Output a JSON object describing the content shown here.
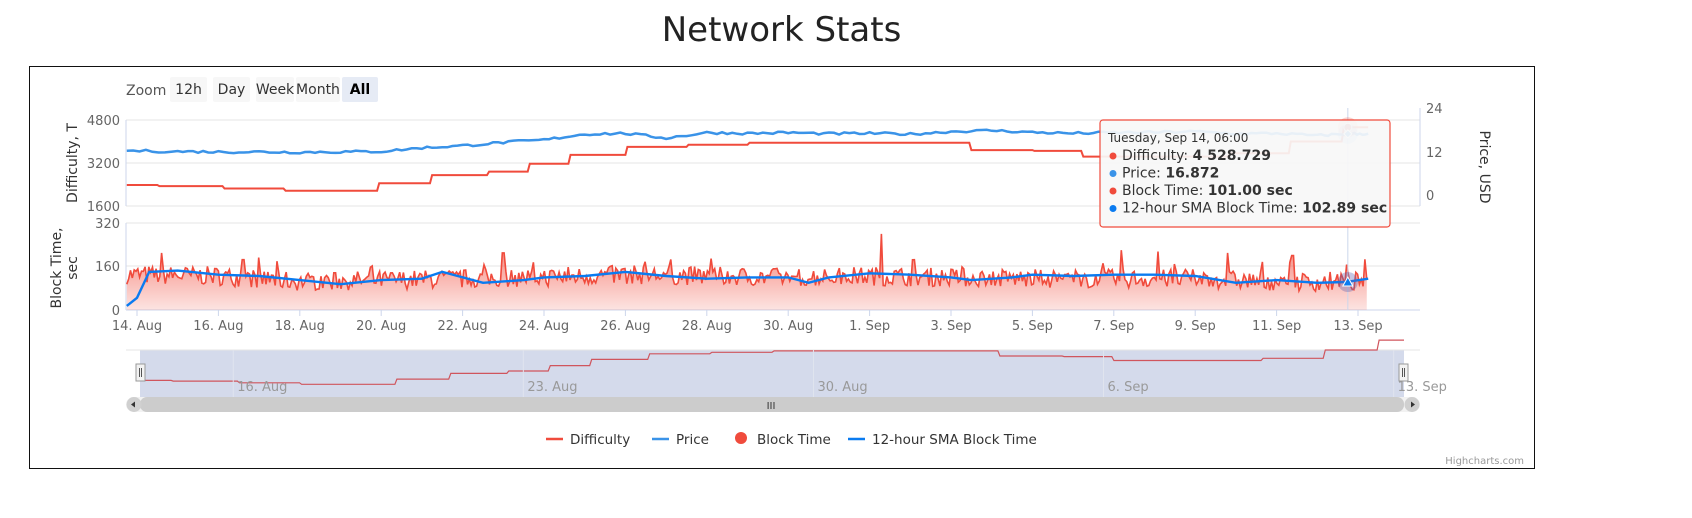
{
  "page": {
    "title": "Network Stats"
  },
  "range_selector": {
    "label": "Zoom",
    "buttons": [
      {
        "label": "12h",
        "active": false
      },
      {
        "label": "Day",
        "active": false
      },
      {
        "label": "Week",
        "active": false
      },
      {
        "label": "Month",
        "active": false
      },
      {
        "label": "All",
        "active": true
      }
    ]
  },
  "tooltip": {
    "header": "Tuesday, Sep 14, 06:00",
    "rows": [
      {
        "name": "Difficulty",
        "value": "4 528.729",
        "color": "#f04b3c"
      },
      {
        "name": "Price",
        "value": "16.872",
        "color": "#3a93e8"
      },
      {
        "name": "Block Time",
        "value": "101.00 sec",
        "color": "#f04b3c"
      },
      {
        "name": "12-hour SMA Block Time",
        "value": "102.89 sec",
        "color": "#0a7bf0"
      }
    ]
  },
  "legend": {
    "items": [
      {
        "name": "Difficulty",
        "symbol": "line",
        "color": "#f04b3c"
      },
      {
        "name": "Price",
        "symbol": "line",
        "color": "#3a93e8"
      },
      {
        "name": "Block Time",
        "symbol": "circle",
        "color": "#f04b3c"
      },
      {
        "name": "12-hour SMA Block Time",
        "symbol": "line",
        "color": "#0a7bf0"
      }
    ]
  },
  "credits": "Highcharts.com",
  "navigator": {
    "labels": [
      "16. Aug",
      "23. Aug",
      "30. Aug",
      "6. Sep",
      "13. Sep"
    ],
    "scrollbar_grip": "III"
  },
  "chart_data": {
    "type": "line",
    "title": "Network Stats",
    "x_range": [
      "13. Aug 18:00",
      "14. Sep 06:00"
    ],
    "x_ticks": [
      "14. Aug",
      "16. Aug",
      "18. Aug",
      "20. Aug",
      "22. Aug",
      "24. Aug",
      "26. Aug",
      "28. Aug",
      "30. Aug",
      "1. Sep",
      "3. Sep",
      "5. Sep",
      "7. Sep",
      "9. Sep",
      "11. Sep",
      "13. Sep"
    ],
    "panes": [
      {
        "name": "top",
        "y_axis_left": {
          "title": "Difficulty, T",
          "ticks": [
            "4800",
            "3200",
            "1600"
          ],
          "range": [
            1600,
            4800
          ]
        },
        "y_axis_right": {
          "title": "Price, USD",
          "ticks": [
            "24",
            "12",
            "0"
          ],
          "range": [
            0,
            24
          ]
        }
      },
      {
        "name": "bottom",
        "y_axis_left": {
          "title": "Block Time, sec",
          "title_lines": [
            "Block Time,",
            "sec"
          ],
          "ticks": [
            "320",
            "160",
            "0"
          ],
          "range": [
            0,
            320
          ]
        }
      }
    ],
    "x_day_offsets_note": "x values are days since 14 Aug 00:00",
    "series": [
      {
        "name": "Difficulty",
        "type": "step-line",
        "axis": "difficulty",
        "color": "#f04b3c",
        "points": [
          [
            -0.25,
            2380
          ],
          [
            0.5,
            2380
          ],
          [
            0.55,
            2340
          ],
          [
            2.1,
            2340
          ],
          [
            2.15,
            2250
          ],
          [
            3.6,
            2250
          ],
          [
            3.65,
            2170
          ],
          [
            5.9,
            2170
          ],
          [
            5.95,
            2450
          ],
          [
            7.2,
            2450
          ],
          [
            7.25,
            2750
          ],
          [
            8.6,
            2750
          ],
          [
            8.65,
            2880
          ],
          [
            9.6,
            2880
          ],
          [
            9.65,
            3170
          ],
          [
            10.6,
            3170
          ],
          [
            10.65,
            3500
          ],
          [
            12.0,
            3500
          ],
          [
            12.05,
            3800
          ],
          [
            13.5,
            3800
          ],
          [
            13.55,
            3880
          ],
          [
            15.0,
            3880
          ],
          [
            15.05,
            3950
          ],
          [
            19.0,
            3950
          ],
          [
            19.05,
            3950
          ],
          [
            20.45,
            3950
          ],
          [
            20.5,
            3680
          ],
          [
            22.0,
            3680
          ],
          [
            22.05,
            3650
          ],
          [
            23.2,
            3650
          ],
          [
            23.25,
            3440
          ],
          [
            26.8,
            3440
          ],
          [
            26.85,
            3560
          ],
          [
            28.3,
            3560
          ],
          [
            28.35,
            4000
          ],
          [
            29.6,
            4000
          ],
          [
            29.65,
            4528.729
          ],
          [
            30.25,
            4528.729
          ]
        ]
      },
      {
        "name": "Price",
        "type": "line",
        "axis": "price",
        "color": "#3a93e8",
        "points": [
          [
            -0.25,
            12.2
          ],
          [
            1,
            12.0
          ],
          [
            2,
            11.9
          ],
          [
            3,
            11.9
          ],
          [
            4,
            11.8
          ],
          [
            5,
            11.9
          ],
          [
            6,
            12.0
          ],
          [
            7,
            13.0
          ],
          [
            8,
            13.6
          ],
          [
            9,
            14.5
          ],
          [
            10,
            15.2
          ],
          [
            11,
            16.8
          ],
          [
            12,
            17.0
          ],
          [
            13,
            15.7
          ],
          [
            14,
            17.2
          ],
          [
            15,
            17.0
          ],
          [
            16,
            17.2
          ],
          [
            17,
            16.9
          ],
          [
            18,
            17.0
          ],
          [
            19,
            16.8
          ],
          [
            20,
            17.5
          ],
          [
            21,
            17.8
          ],
          [
            22,
            17.3
          ],
          [
            23,
            17.0
          ],
          [
            24,
            17.2
          ],
          [
            25,
            17.3
          ],
          [
            26,
            17.5
          ],
          [
            27,
            16.9
          ],
          [
            28,
            17.0
          ],
          [
            29,
            16.4
          ],
          [
            29.7,
            16.872
          ],
          [
            30.25,
            16.9
          ]
        ]
      },
      {
        "name": "Block Time",
        "type": "area",
        "axis": "blocktime",
        "color": "#f04b3c",
        "summary": "noisy series around 80-180 sec, spikes up to ~280 sec near 1. Sep",
        "mean_segments": [
          [
            -0.25,
            130
          ],
          [
            2,
            125
          ],
          [
            4,
            105
          ],
          [
            6,
            110
          ],
          [
            8,
            115
          ],
          [
            10,
            120
          ],
          [
            12,
            130
          ],
          [
            14,
            125
          ],
          [
            16,
            120
          ],
          [
            18,
            125
          ],
          [
            20,
            120
          ],
          [
            22,
            115
          ],
          [
            24,
            115
          ],
          [
            26,
            115
          ],
          [
            28,
            105
          ],
          [
            29.7,
            101
          ],
          [
            30.25,
            110
          ]
        ],
        "peaks": [
          [
            0.6,
            210
          ],
          [
            2.6,
            185
          ],
          [
            9.0,
            210
          ],
          [
            18.3,
            280
          ],
          [
            24.2,
            220
          ],
          [
            25.1,
            215
          ],
          [
            26.8,
            210
          ],
          [
            28.4,
            200
          ]
        ]
      },
      {
        "name": "12-hour SMA Block Time",
        "type": "line",
        "axis": "blocktime",
        "color": "#0a7bf0",
        "points": [
          [
            -0.25,
            15
          ],
          [
            0,
            45
          ],
          [
            0.3,
            140
          ],
          [
            1,
            145
          ],
          [
            2,
            130
          ],
          [
            3,
            125
          ],
          [
            4,
            110
          ],
          [
            5,
            95
          ],
          [
            6,
            110
          ],
          [
            7,
            115
          ],
          [
            7.5,
            140
          ],
          [
            8.5,
            100
          ],
          [
            9.5,
            110
          ],
          [
            10,
            120
          ],
          [
            11,
            125
          ],
          [
            12,
            140
          ],
          [
            13,
            125
          ],
          [
            14,
            115
          ],
          [
            15,
            120
          ],
          [
            16,
            120
          ],
          [
            16.5,
            100
          ],
          [
            17,
            120
          ],
          [
            18,
            135
          ],
          [
            19,
            130
          ],
          [
            20,
            120
          ],
          [
            20.5,
            110
          ],
          [
            21.5,
            120
          ],
          [
            22,
            130
          ],
          [
            23,
            125
          ],
          [
            24,
            130
          ],
          [
            25,
            130
          ],
          [
            26,
            125
          ],
          [
            27,
            100
          ],
          [
            28,
            110
          ],
          [
            29,
            100
          ],
          [
            29.7,
            102.89
          ],
          [
            30.25,
            115
          ]
        ]
      }
    ],
    "highlighted_point": "Tuesday, Sep 14, 06:00"
  }
}
